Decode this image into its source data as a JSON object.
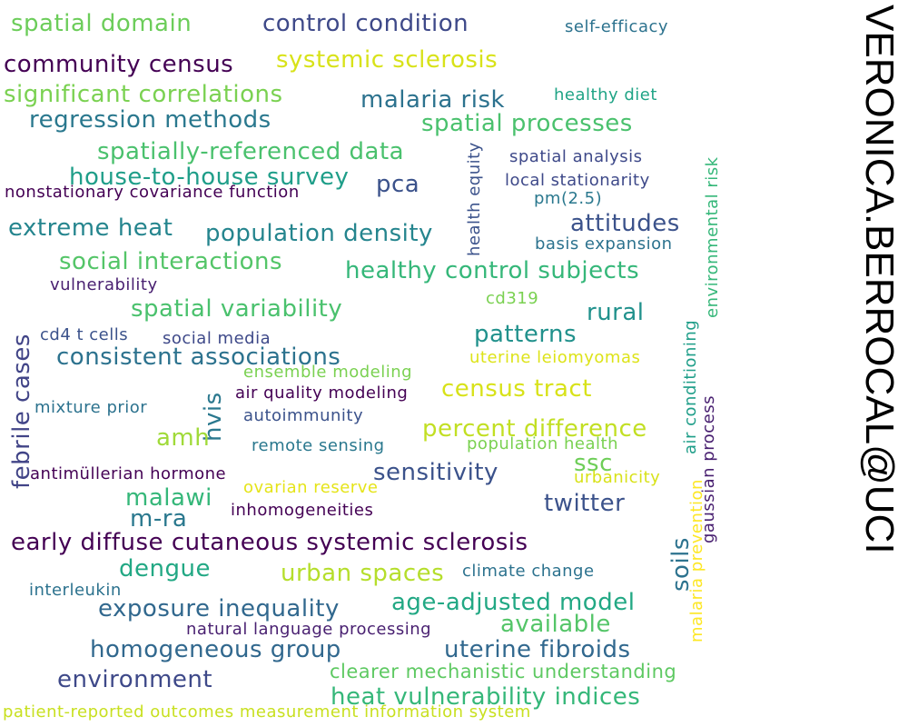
{
  "email": "VERONICA.BERROCAL@UCI",
  "words": [
    {
      "text": "spatial domain",
      "color": "#6ccd5a"
    },
    {
      "text": "control condition",
      "color": "#3e4989"
    },
    {
      "text": "self-efficacy",
      "color": "#2c728e"
    },
    {
      "text": "community census",
      "color": "#440154"
    },
    {
      "text": "systemic sclerosis",
      "color": "#d8e219"
    },
    {
      "text": "significant correlations",
      "color": "#7ad151"
    },
    {
      "text": "malaria risk",
      "color": "#2c728e"
    },
    {
      "text": "healthy diet",
      "color": "#20a486"
    },
    {
      "text": "regression methods",
      "color": "#2a788e"
    },
    {
      "text": "spatial processes",
      "color": "#4ac16d"
    },
    {
      "text": "spatially-referenced data",
      "color": "#4ac16d"
    },
    {
      "text": "health equity",
      "color": "#3b528b"
    },
    {
      "text": "spatial analysis",
      "color": "#3e4989"
    },
    {
      "text": "environmental risk",
      "color": "#35b779"
    },
    {
      "text": "house-to-house survey",
      "color": "#1f9e89"
    },
    {
      "text": "pca",
      "color": "#3b528b"
    },
    {
      "text": "local stationarity",
      "color": "#3e4989"
    },
    {
      "text": "nonstationary covariance function",
      "color": "#440154"
    },
    {
      "text": "pm(2.5)",
      "color": "#2a788e"
    },
    {
      "text": "extreme heat",
      "color": "#25858e"
    },
    {
      "text": "population density",
      "color": "#25858e"
    },
    {
      "text": "attitudes",
      "color": "#3b528b"
    },
    {
      "text": "basis expansion",
      "color": "#2c728e"
    },
    {
      "text": "social interactions",
      "color": "#54c568"
    },
    {
      "text": "healthy control subjects",
      "color": "#35b779"
    },
    {
      "text": "vulnerability",
      "color": "#481f70"
    },
    {
      "text": "cd319",
      "color": "#7ad151"
    },
    {
      "text": "air conditioning",
      "color": "#1f9e89"
    },
    {
      "text": "spatial variability",
      "color": "#4ac16d"
    },
    {
      "text": "rural",
      "color": "#21918c"
    },
    {
      "text": "febrile cases",
      "color": "#414487"
    },
    {
      "text": "cd4 t cells",
      "color": "#3b528b"
    },
    {
      "text": "social media",
      "color": "#3e4989"
    },
    {
      "text": "patterns",
      "color": "#21918c"
    },
    {
      "text": "consistent associations",
      "color": "#2c728e"
    },
    {
      "text": "uterine leiomyomas",
      "color": "#dde318"
    },
    {
      "text": "ensemble modeling",
      "color": "#7ad151"
    },
    {
      "text": "hvis",
      "color": "#2a788e"
    },
    {
      "text": "air quality modeling",
      "color": "#440154"
    },
    {
      "text": "census tract",
      "color": "#d8e219"
    },
    {
      "text": "gaussian process",
      "color": "#481f70"
    },
    {
      "text": "mixture prior",
      "color": "#2c728e"
    },
    {
      "text": "autoimmunity",
      "color": "#3b528b"
    },
    {
      "text": "amh",
      "color": "#a0da39"
    },
    {
      "text": "percent difference",
      "color": "#c2df23"
    },
    {
      "text": "remote sensing",
      "color": "#2a788e"
    },
    {
      "text": "population health",
      "color": "#7ad151"
    },
    {
      "text": "malaria prevention",
      "color": "#fde725"
    },
    {
      "text": "ssc",
      "color": "#6ece58"
    },
    {
      "text": "antimüllerian hormone",
      "color": "#440154"
    },
    {
      "text": "sensitivity",
      "color": "#3b528b"
    },
    {
      "text": "urbanicity",
      "color": "#d8e219"
    },
    {
      "text": "ovarian reserve",
      "color": "#e5e419"
    },
    {
      "text": "malawi",
      "color": "#35b779"
    },
    {
      "text": "twitter",
      "color": "#3b528b"
    },
    {
      "text": "m-ra",
      "color": "#2a788e"
    },
    {
      "text": "inhomogeneities",
      "color": "#440154"
    },
    {
      "text": "soils",
      "color": "#2c728e"
    },
    {
      "text": "early diffuse cutaneous systemic sclerosis",
      "color": "#440154"
    },
    {
      "text": "dengue",
      "color": "#22a884"
    },
    {
      "text": "urban spaces",
      "color": "#b5de2b"
    },
    {
      "text": "climate change",
      "color": "#2c728e"
    },
    {
      "text": "interleukin",
      "color": "#2c728e"
    },
    {
      "text": "exposure inequality",
      "color": "#31688e"
    },
    {
      "text": "age-adjusted model",
      "color": "#22a884"
    },
    {
      "text": "available",
      "color": "#54c568"
    },
    {
      "text": "natural language processing",
      "color": "#481f70"
    },
    {
      "text": "homogeneous group",
      "color": "#31688e"
    },
    {
      "text": "uterine fibroids",
      "color": "#31688e"
    },
    {
      "text": "environment",
      "color": "#3e4989"
    },
    {
      "text": "clearer mechanistic understanding",
      "color": "#5ec962"
    },
    {
      "text": "heat vulnerability indices",
      "color": "#35b779"
    },
    {
      "text": "patient-reported outcomes measurement information system",
      "color": "#c8e020"
    }
  ]
}
